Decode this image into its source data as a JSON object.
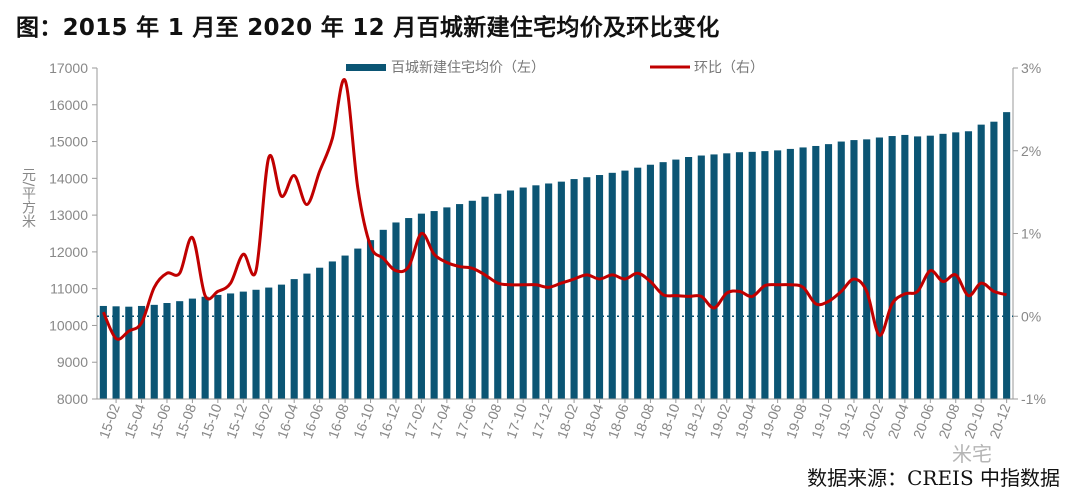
{
  "title": "图：2015 年 1 月至 2020 年 12 月百城新建住宅均价及环比变化",
  "source": "数据来源：CREIS 中指数据",
  "watermark": "米宅",
  "colors": {
    "bar": "#0b5574",
    "line": "#c00000",
    "axis": "#9a9a9a",
    "tick_text": "#888888",
    "zero_line": "#0b5574"
  },
  "chart_data": {
    "type": "bar+line",
    "categories": [
      "15-01",
      "15-02",
      "15-03",
      "15-04",
      "15-05",
      "15-06",
      "15-07",
      "15-08",
      "15-09",
      "15-10",
      "15-11",
      "15-12",
      "16-01",
      "16-02",
      "16-03",
      "16-04",
      "16-05",
      "16-06",
      "16-07",
      "16-08",
      "16-09",
      "16-10",
      "16-11",
      "16-12",
      "17-01",
      "17-02",
      "17-03",
      "17-04",
      "17-05",
      "17-06",
      "17-07",
      "17-08",
      "17-09",
      "17-10",
      "17-11",
      "17-12",
      "18-01",
      "18-02",
      "18-03",
      "18-04",
      "18-05",
      "18-06",
      "18-07",
      "18-08",
      "18-09",
      "18-10",
      "18-11",
      "18-12",
      "19-01",
      "19-02",
      "19-03",
      "19-04",
      "19-05",
      "19-06",
      "19-07",
      "19-08",
      "19-09",
      "19-10",
      "19-11",
      "19-12",
      "20-01",
      "20-02",
      "20-03",
      "20-04",
      "20-05",
      "20-06",
      "20-07",
      "20-08",
      "20-09",
      "20-10",
      "20-11",
      "20-12"
    ],
    "xtick_labels": [
      "15-02",
      "15-04",
      "15-06",
      "15-08",
      "15-10",
      "15-12",
      "16-02",
      "16-04",
      "16-06",
      "16-08",
      "16-10",
      "16-12",
      "17-02",
      "17-04",
      "17-06",
      "17-08",
      "17-10",
      "17-12",
      "18-02",
      "18-04",
      "18-06",
      "18-08",
      "18-10",
      "18-12",
      "19-02",
      "19-04",
      "19-06",
      "19-08",
      "19-10",
      "19-12",
      "20-02",
      "20-04",
      "20-06",
      "20-08",
      "20-10",
      "20-12"
    ],
    "series": [
      {
        "name": "百城新建住宅均价（左）",
        "type": "bar",
        "axis": "left",
        "values": [
          10530,
          10520,
          10510,
          10530,
          10560,
          10610,
          10660,
          10730,
          10780,
          10830,
          10870,
          10920,
          10970,
          11030,
          11110,
          11260,
          11410,
          11570,
          11740,
          11900,
          12090,
          12320,
          12600,
          12800,
          12920,
          13040,
          13110,
          13210,
          13300,
          13390,
          13500,
          13580,
          13670,
          13750,
          13810,
          13860,
          13910,
          13980,
          14030,
          14090,
          14150,
          14210,
          14290,
          14370,
          14440,
          14510,
          14580,
          14620,
          14650,
          14680,
          14710,
          14720,
          14740,
          14760,
          14800,
          14840,
          14880,
          14930,
          15000,
          15040,
          15060,
          15110,
          15150,
          15180,
          15140,
          15160,
          15210,
          15250,
          15280,
          15460,
          15540,
          15800
        ]
      },
      {
        "name": "环比（右）",
        "type": "line",
        "axis": "right",
        "values": [
          0.05,
          -0.27,
          -0.18,
          -0.08,
          0.35,
          0.52,
          0.52,
          0.95,
          0.25,
          0.3,
          0.4,
          0.75,
          0.55,
          1.92,
          1.45,
          1.7,
          1.35,
          1.75,
          2.15,
          2.85,
          1.55,
          0.85,
          0.7,
          0.55,
          0.6,
          1.0,
          0.75,
          0.65,
          0.6,
          0.58,
          0.5,
          0.4,
          0.38,
          0.38,
          0.38,
          0.35,
          0.4,
          0.45,
          0.5,
          0.45,
          0.5,
          0.45,
          0.52,
          0.42,
          0.26,
          0.25,
          0.24,
          0.24,
          0.1,
          0.28,
          0.3,
          0.24,
          0.37,
          0.38,
          0.38,
          0.35,
          0.15,
          0.18,
          0.3,
          0.45,
          0.3,
          -0.23,
          0.15,
          0.27,
          0.3,
          0.55,
          0.42,
          0.5,
          0.25,
          0.4,
          0.3,
          0.26
        ]
      }
    ],
    "ylabel": "元/平方米",
    "y_left": {
      "min": 8000,
      "max": 17000,
      "step": 1000,
      "ticks": [
        "8000",
        "9000",
        "10000",
        "11000",
        "12000",
        "13000",
        "14000",
        "15000",
        "16000",
        "17000"
      ]
    },
    "y_right": {
      "min": -1,
      "max": 3,
      "step": 1,
      "ticks": [
        "-1%",
        "0%",
        "1%",
        "2%",
        "3%"
      ]
    },
    "legend_position": "top",
    "grid": false
  }
}
